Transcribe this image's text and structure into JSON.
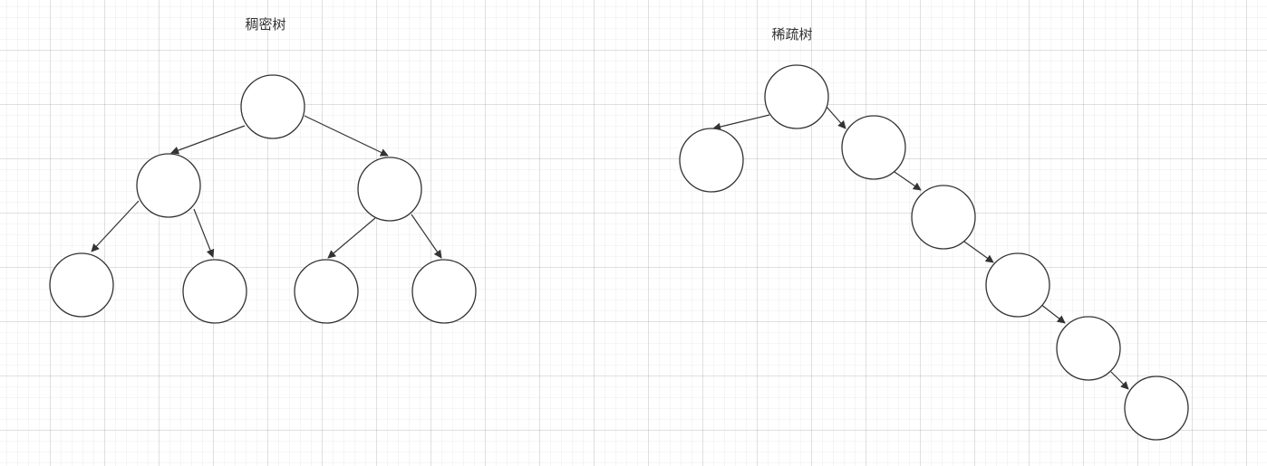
{
  "diagrams": {
    "dense": {
      "title": "稠密树"
    },
    "sparse": {
      "title": "稀疏树"
    }
  },
  "colors": {
    "stroke": "#333333",
    "node_fill": "#ffffff",
    "grid": "#e6e6e6"
  }
}
